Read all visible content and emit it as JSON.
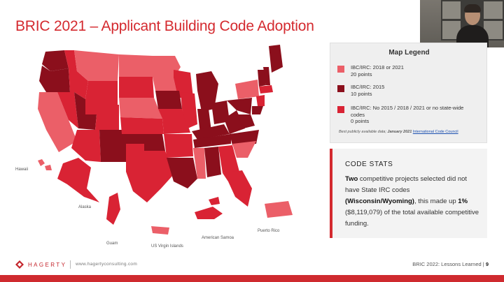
{
  "slide": {
    "title": "BRIC 2021 – Applicant Building Code Adoption"
  },
  "map": {
    "labels": {
      "hawaii": "Hawaii",
      "alaska": "Alaska",
      "guam": "Guam",
      "usvi": "US Virgin Islands",
      "samoa": "American Samoa",
      "puerto_rico": "Puerto Rico"
    },
    "colors": {
      "light": "#eb5f68",
      "dark": "#8b0f1c",
      "mid": "#d92334"
    }
  },
  "legend": {
    "title": "Map Legend",
    "items": [
      {
        "line1": "IBC/IRC: 2018 or 2021",
        "line2": "20 points",
        "color": "#eb5f68"
      },
      {
        "line1": "IBC/IRC: 2015",
        "line2": "10 points",
        "color": "#8b0f1c"
      },
      {
        "line1": "IBC/IRC: No 2015 / 2018 / 2021 or no state-wide",
        "line2": "codes",
        "line3": "0 points",
        "color": "#d92334"
      }
    ],
    "source_prefix": "Best publicly available data;",
    "source_date": "January 2021",
    "source_link": "International Code Council"
  },
  "stats": {
    "title": "CODE STATS",
    "t1": "Two",
    "t2": " competitive projects selected did not have State IRC codes ",
    "t3": "(Wisconsin/Wyoming)",
    "t4": ", this made up ",
    "t5": "1%",
    "t6": " ($8,119,079) of the total available competitive funding."
  },
  "footer": {
    "brand": "HAGERTY",
    "url": "www.hagertyconsulting.com",
    "right_text": "BRIC 2022: Lessons Learned |",
    "page": "9"
  }
}
